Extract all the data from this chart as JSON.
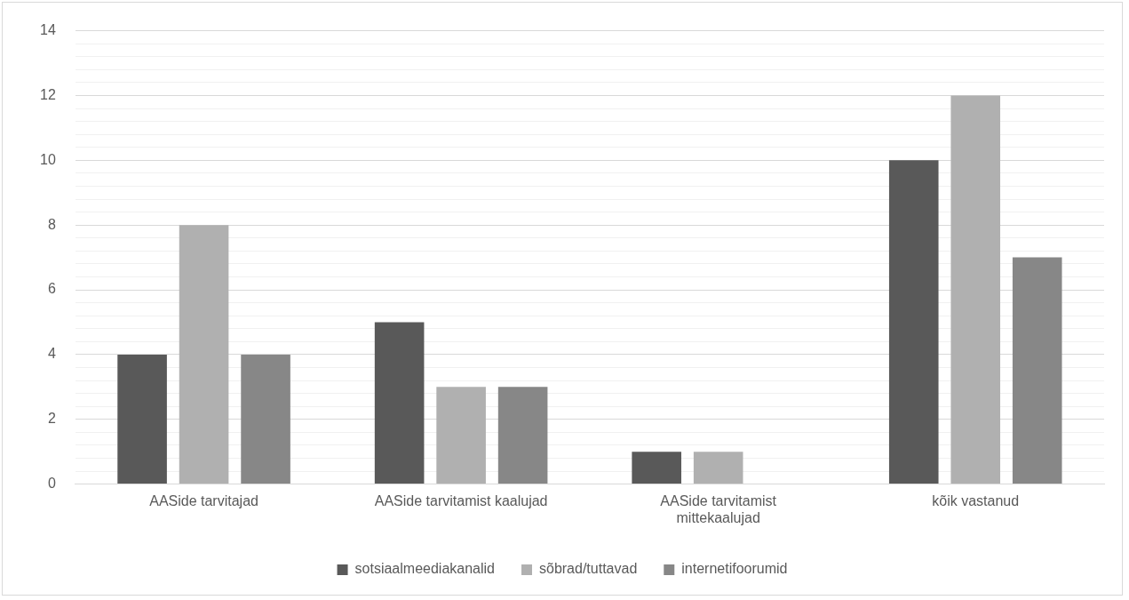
{
  "chart_data": {
    "type": "bar",
    "categories": [
      "AASide tarvitajad",
      "AASide tarvitamist kaalujad",
      "AASide tarvitamist mittekaalujad",
      "kõik vastanud"
    ],
    "series": [
      {
        "name": "sotsiaalmeediakanalid",
        "color": "#595959",
        "values": [
          4,
          5,
          1,
          10
        ]
      },
      {
        "name": "sõbrad/tuttavad",
        "color": "#b0b0b0",
        "values": [
          8,
          3,
          1,
          12
        ]
      },
      {
        "name": "internetifoorumid",
        "color": "#878787",
        "values": [
          4,
          3,
          0,
          7
        ]
      }
    ],
    "ylim": [
      0,
      14
    ],
    "yticks": [
      0,
      {
        "value": 0.4,
        "label": null
      },
      {
        "value": 0.8,
        "label": null
      },
      {
        "value": 1.2,
        "label": null
      },
      {
        "value": 1.6,
        "label": null
      },
      2,
      {
        "value": 2.4,
        "label": null
      },
      {
        "value": 2.8,
        "label": null
      },
      {
        "value": 3.2,
        "label": null
      },
      {
        "value": 3.6,
        "label": null
      },
      4,
      {
        "value": 4.4,
        "label": null
      },
      {
        "value": 4.8,
        "label": null
      },
      {
        "value": 5.2,
        "label": null
      },
      {
        "value": 5.6,
        "label": null
      },
      6,
      {
        "value": 6.4,
        "label": null
      },
      {
        "value": 6.8,
        "label": null
      },
      {
        "value": 7.2,
        "label": null
      },
      {
        "value": 7.6,
        "label": null
      },
      8,
      {
        "value": 8.4,
        "label": null
      },
      {
        "value": 8.8,
        "label": null
      },
      {
        "value": 9.2,
        "label": null
      },
      {
        "value": 9.6,
        "label": null
      },
      10,
      {
        "value": 10.4,
        "label": null
      },
      {
        "value": 10.8,
        "label": null
      },
      {
        "value": 11.2,
        "label": null
      },
      {
        "value": 11.6,
        "label": null
      },
      12,
      {
        "value": 12.4,
        "label": null
      },
      {
        "value": 12.8,
        "label": null
      },
      {
        "value": 13.2,
        "label": null
      },
      {
        "value": 13.6,
        "label": null
      },
      14
    ],
    "grid": "y",
    "legend": "bottom"
  }
}
